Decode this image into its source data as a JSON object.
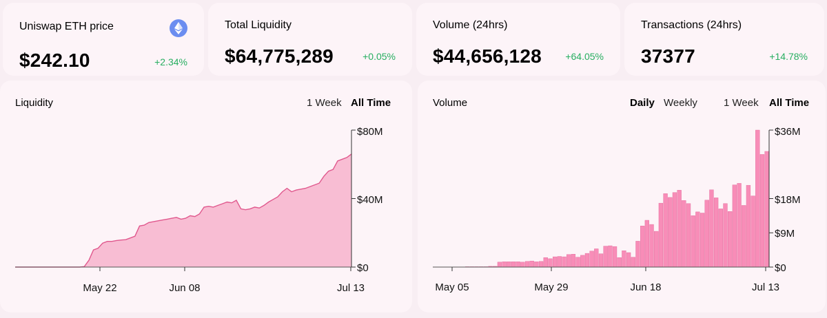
{
  "stats": {
    "eth_price": {
      "title": "Uniswap ETH price",
      "value": "$242.10",
      "change": "+2.34%",
      "icon": "ethereum-icon"
    },
    "liquidity": {
      "title": "Total Liquidity",
      "value": "$64,775,289",
      "change": "+0.05%"
    },
    "volume": {
      "title": "Volume (24hrs)",
      "value": "$44,656,128",
      "change": "+64.05%"
    },
    "transactions": {
      "title": "Transactions (24hrs)",
      "value": "37377",
      "change": "+14.78%"
    }
  },
  "colors": {
    "positive": "#27ae60",
    "accent_fill": "#f7b3cd",
    "accent_line": "#e0588d",
    "bar": "#f782b0"
  },
  "liquidity_chart": {
    "title": "Liquidity",
    "range_options": [
      "1 Week",
      "All Time"
    ],
    "selected_range": "All Time"
  },
  "volume_chart": {
    "title": "Volume",
    "interval_options": [
      "Daily",
      "Weekly"
    ],
    "selected_interval": "Daily",
    "range_options": [
      "1 Week",
      "All Time"
    ],
    "selected_range": "All Time"
  },
  "chart_data": [
    {
      "type": "area",
      "title": "Liquidity",
      "x_tick_labels": [
        "May 22",
        "Jun 08",
        "Jul 13"
      ],
      "y_tick_labels": [
        "$80M",
        "$40M",
        "$0"
      ],
      "ylim": [
        0,
        80
      ],
      "y_unit": "M USD",
      "values": [
        0,
        0,
        0,
        0,
        0,
        0,
        0,
        0,
        0,
        0,
        0,
        0,
        0,
        0,
        0,
        0.3,
        4,
        10,
        11,
        14,
        15,
        15,
        15.5,
        15.8,
        16,
        17,
        18,
        24,
        24.5,
        26,
        26.5,
        27,
        27.5,
        28,
        28.5,
        29,
        28,
        28.5,
        30,
        29.5,
        31,
        35,
        35.5,
        35,
        36,
        37,
        38,
        37.5,
        39,
        34,
        33.5,
        34,
        35,
        34.5,
        36,
        38,
        39.5,
        41,
        44,
        46,
        44,
        45,
        45.5,
        46,
        47,
        48,
        49,
        53,
        56,
        57,
        62,
        63,
        64,
        66
      ]
    },
    {
      "type": "bar",
      "title": "Volume",
      "x_tick_labels": [
        "May 05",
        "May 29",
        "Jun 18",
        "Jul 13"
      ],
      "y_tick_labels": [
        "$36M",
        "$18M",
        "$9M",
        "$0"
      ],
      "ylim": [
        0,
        36
      ],
      "y_unit": "M USD",
      "values": [
        0,
        0,
        0,
        0,
        0,
        0,
        0,
        0.1,
        0.1,
        0.1,
        0.1,
        0.1,
        0.2,
        0.2,
        1.3,
        1.4,
        1.4,
        1.4,
        1.4,
        1.3,
        1.5,
        1.6,
        1.4,
        1.5,
        2.5,
        2.2,
        2.7,
        2.8,
        2.7,
        3.3,
        3.4,
        2.6,
        3.1,
        3.6,
        4.2,
        4.8,
        3.5,
        5.5,
        5.6,
        5.4,
        2.5,
        4.3,
        3.8,
        2.6,
        6.8,
        10.8,
        12.3,
        11.2,
        9.4,
        16.8,
        19.3,
        18.3,
        19.6,
        20.2,
        17.5,
        16.7,
        13.5,
        14.5,
        14.2,
        17.6,
        20.3,
        18.2,
        15.3,
        16.7,
        14.6,
        21.6,
        22.0,
        16.2,
        21.5,
        18.7,
        36.0,
        29.6,
        30.4
      ]
    }
  ]
}
